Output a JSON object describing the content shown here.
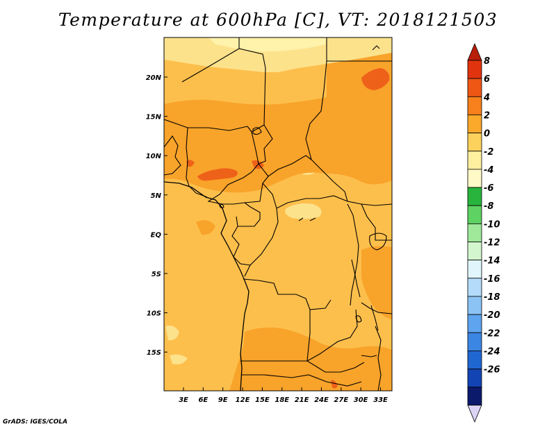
{
  "title": "Temperature at 600hPa [C], VT: 2018121503",
  "credit": "GrADS: IGES/COLA",
  "map": {
    "lon_labels": [
      "3E",
      "6E",
      "9E",
      "12E",
      "15E",
      "18E",
      "21E",
      "24E",
      "27E",
      "30E",
      "33E"
    ],
    "lat_labels": [
      "20N",
      "15N",
      "10N",
      "5N",
      "EQ",
      "5S",
      "10S",
      "15S"
    ],
    "colors": {
      "base": "#fdbf4c",
      "warm": "#f8a32a",
      "warmer": "#f38a20",
      "hot": "#ee6119",
      "cool": "#fde28c",
      "coolest": "#fff2ab",
      "boundary": "#000000"
    }
  },
  "colorbar": {
    "levels": [
      {
        "label": "8",
        "color": "#e2330f"
      },
      {
        "label": "6",
        "color": "#ef5715"
      },
      {
        "label": "4",
        "color": "#f7801c"
      },
      {
        "label": "2",
        "color": "#fba92b"
      },
      {
        "label": "0",
        "color": "#fcd15c"
      },
      {
        "label": "-2",
        "color": "#fff0a0"
      },
      {
        "label": "-4",
        "color": "#fff8c7"
      },
      {
        "label": "-6",
        "color": "#28b43c"
      },
      {
        "label": "-8",
        "color": "#5ed262"
      },
      {
        "label": "-10",
        "color": "#9fe89a"
      },
      {
        "label": "-12",
        "color": "#d3f6cf"
      },
      {
        "label": "-14",
        "color": "#e1f5fc"
      },
      {
        "label": "-16",
        "color": "#b4dcfa"
      },
      {
        "label": "-18",
        "color": "#8bc3f5"
      },
      {
        "label": "-20",
        "color": "#5ea4ee"
      },
      {
        "label": "-22",
        "color": "#3c86e3"
      },
      {
        "label": "-24",
        "color": "#2066d1"
      },
      {
        "label": "-26",
        "color": "#1344b4"
      }
    ],
    "top_arrow_color": "#b81e0a",
    "bottom_extra_color": "#0b1a6b",
    "bottom_arrow_color": "#dcd4f5"
  }
}
